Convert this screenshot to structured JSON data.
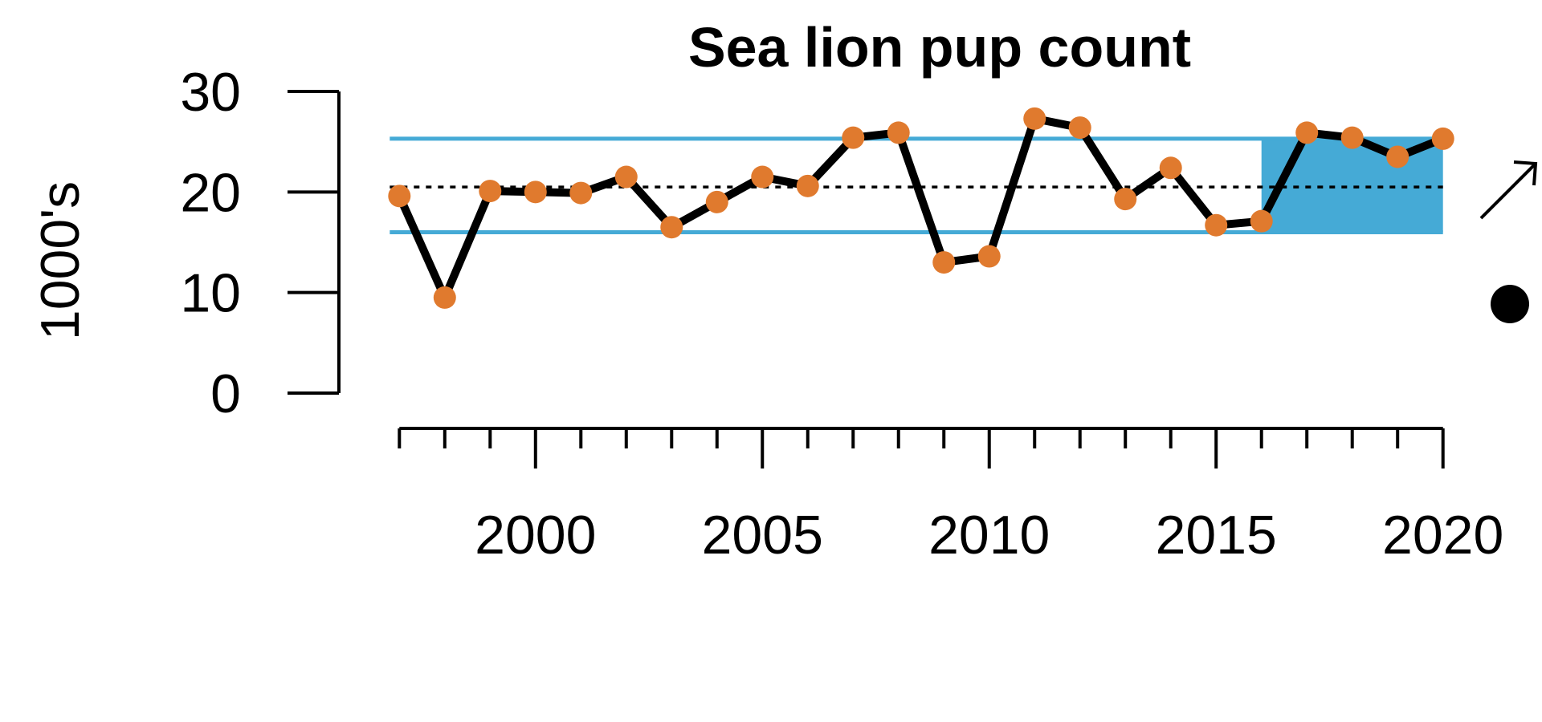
{
  "chart_data": {
    "type": "line",
    "title": "Sea lion pup count",
    "xlabel": "",
    "ylabel": "1000's",
    "x": [
      1997,
      1998,
      1999,
      2000,
      2001,
      2002,
      2003,
      2004,
      2005,
      2006,
      2007,
      2008,
      2009,
      2010,
      2011,
      2012,
      2013,
      2014,
      2015,
      2016,
      2017,
      2018,
      2019,
      2020
    ],
    "series": [
      {
        "values": [
          19.6,
          9.5,
          20.1,
          20.0,
          19.9,
          21.5,
          16.5,
          19.0,
          21.5,
          20.6,
          25.4,
          25.9,
          13.0,
          13.6,
          27.3,
          26.4,
          19.3,
          22.4,
          16.7,
          17.1,
          25.9,
          25.4,
          23.5,
          25.3
        ]
      }
    ],
    "xlim": [
      1996.8,
      2020.2
    ],
    "ylim": [
      0,
      30
    ],
    "y_ticks": [
      0,
      10,
      20,
      30
    ],
    "x_major_ticks": [
      2000,
      2005,
      2010,
      2015,
      2020
    ],
    "mean_line": 20.5,
    "upper_sd_line": 25.3,
    "lower_sd_line": 16.0,
    "highlight_period": [
      2016,
      2020
    ],
    "trend_indicator": "up-arrow",
    "mean_indicator": "filled-circle",
    "grid": false,
    "colors": {
      "band": "#45aad6",
      "line": "#000000",
      "points": "#e07a2e",
      "indicator": "#000000"
    }
  }
}
